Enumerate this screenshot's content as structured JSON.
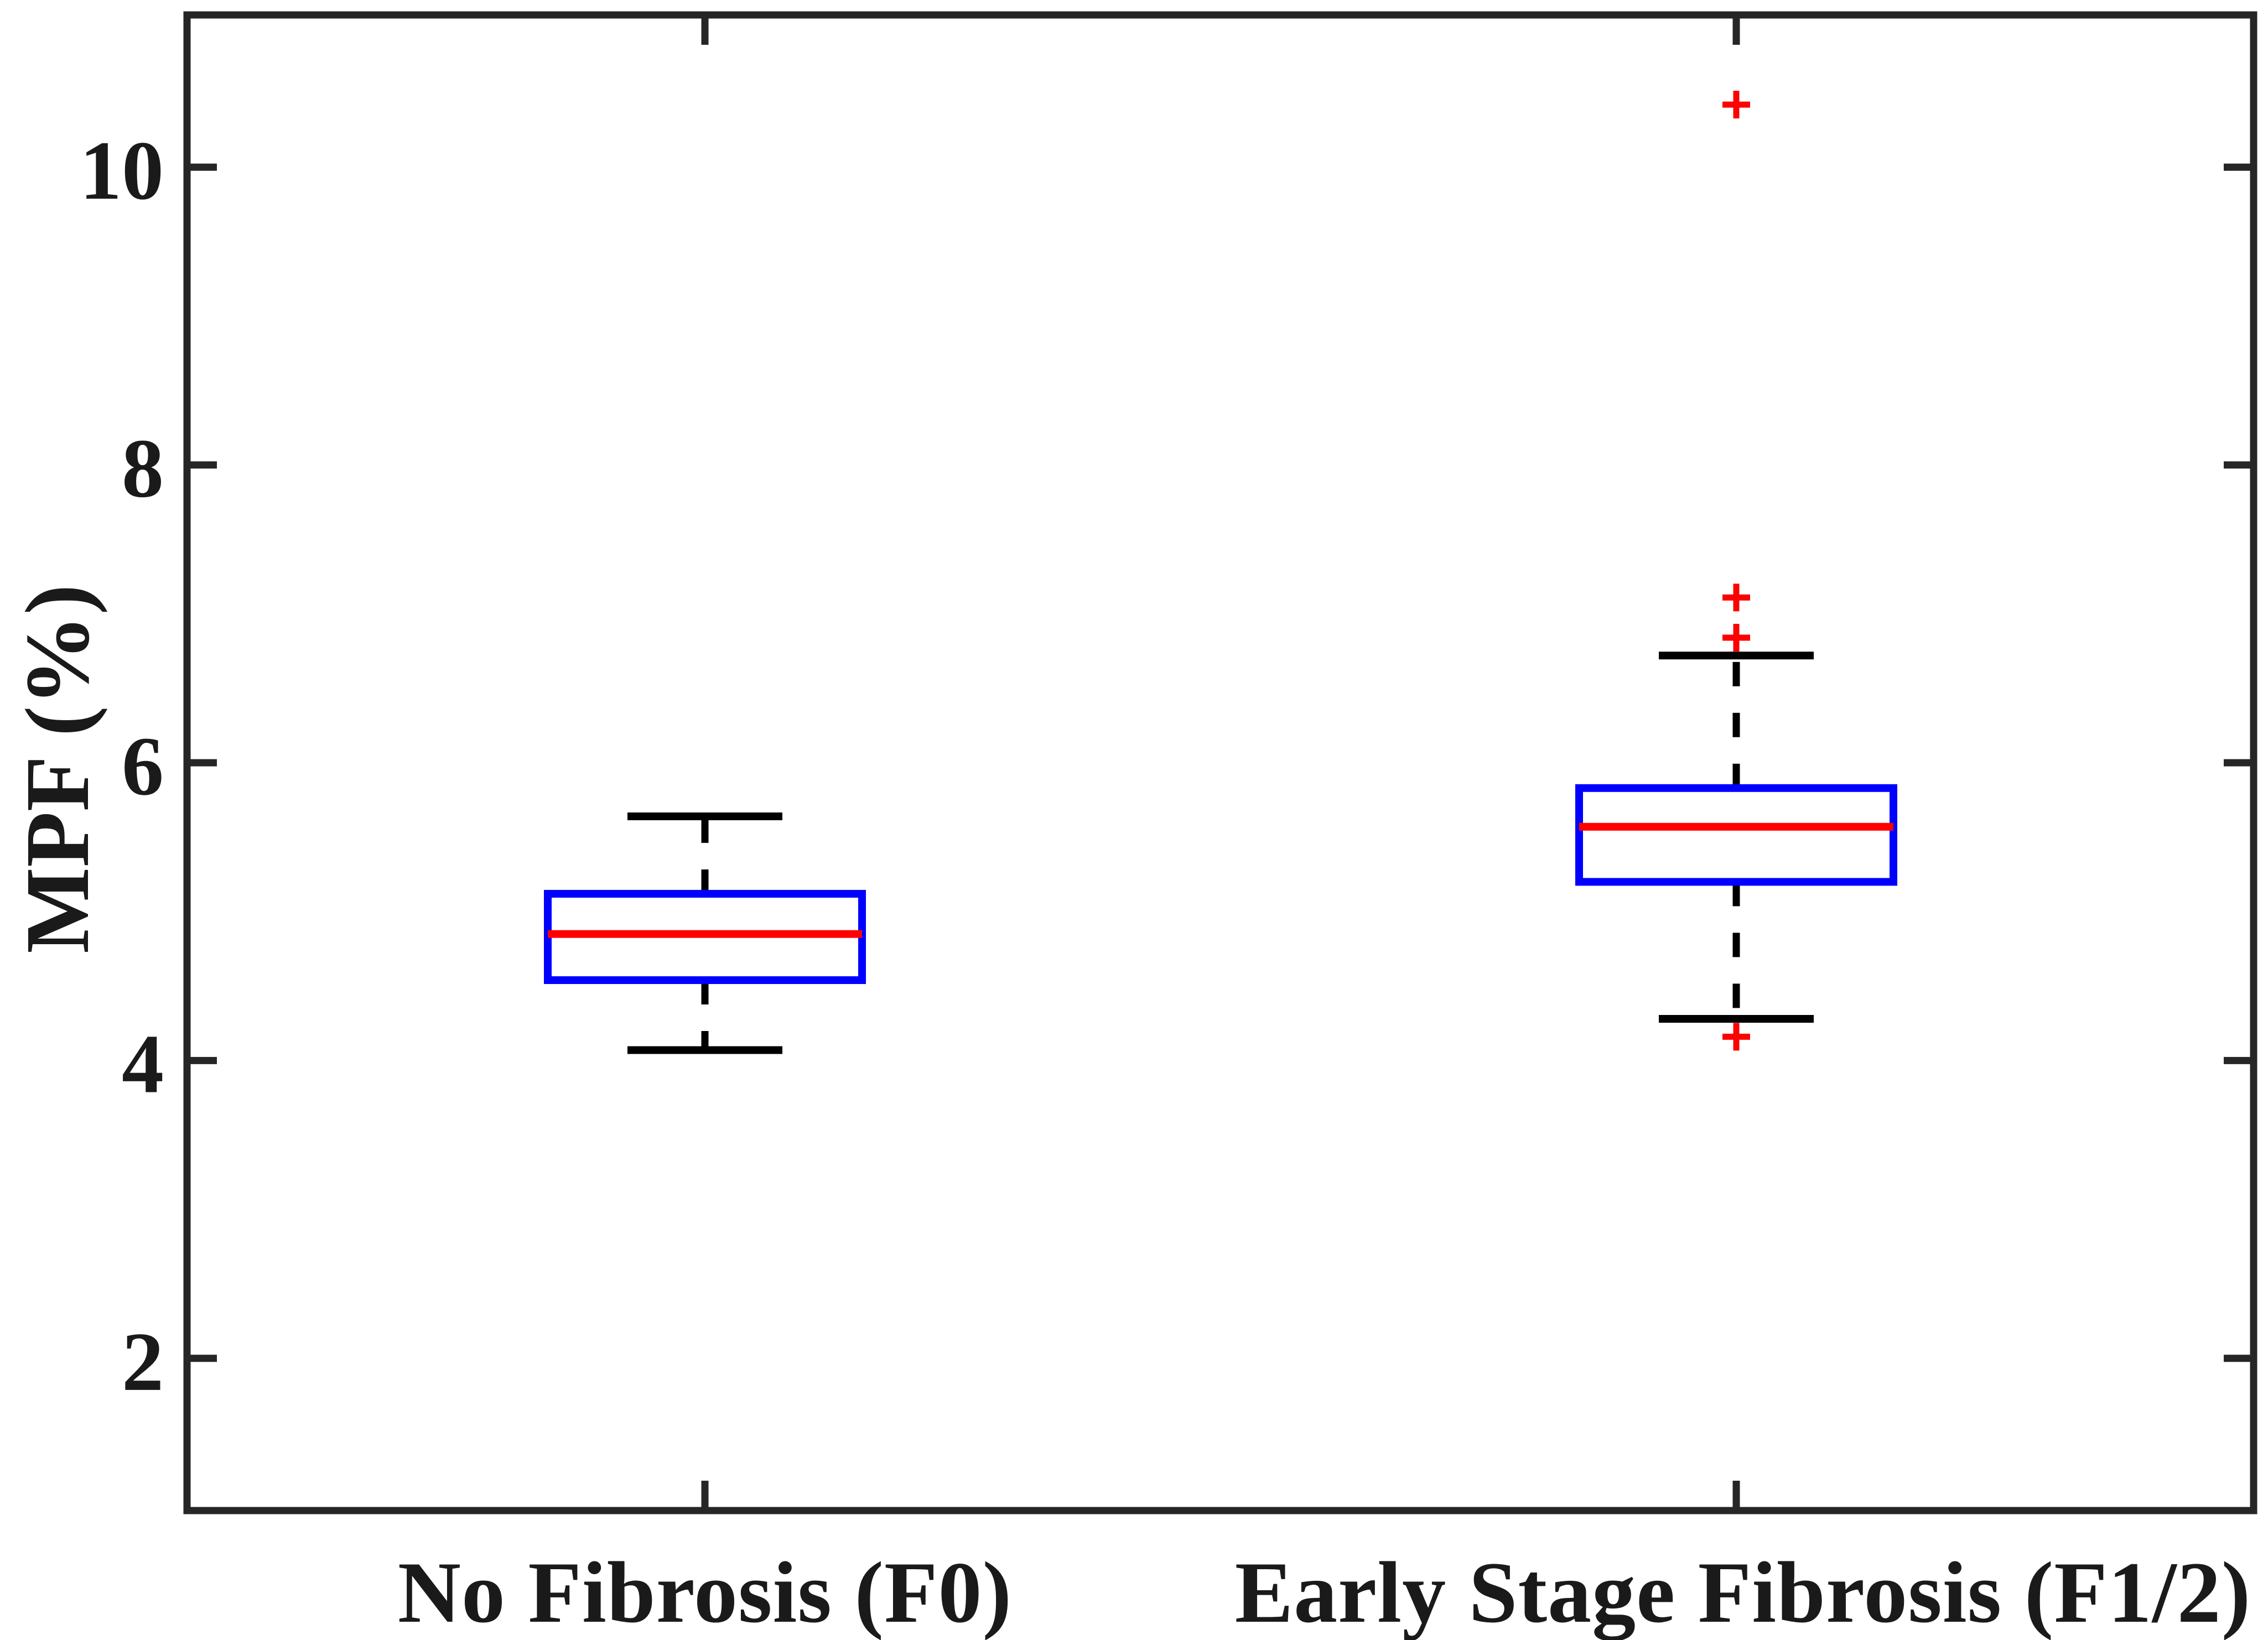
{
  "chart_data": {
    "type": "boxplot",
    "title": "",
    "xlabel": "",
    "ylabel": "MPF (%)",
    "ylim": [
      1,
      11
    ],
    "yticks": [
      2,
      4,
      6,
      8,
      10
    ],
    "grid": false,
    "legend": null,
    "groups": [
      {
        "label": "No Fibrosis (F0)",
        "whisker_low": 4.07,
        "q1": 4.54,
        "median": 4.85,
        "q3": 5.12,
        "whisker_high": 5.64,
        "outliers": []
      },
      {
        "label": "Early Stage Fibrosis (F1/2)",
        "whisker_low": 4.28,
        "q1": 5.2,
        "median": 5.57,
        "q3": 5.83,
        "whisker_high": 6.72,
        "outliers": [
          4.16,
          6.84,
          7.11,
          10.42
        ]
      }
    ],
    "colors": {
      "box": "#0000ff",
      "median": "#ff0000",
      "whisker": "#000000",
      "outlier": "#ff0000",
      "axis": "#262626",
      "text": "#1a1a1a",
      "background": "#ffffff"
    }
  }
}
